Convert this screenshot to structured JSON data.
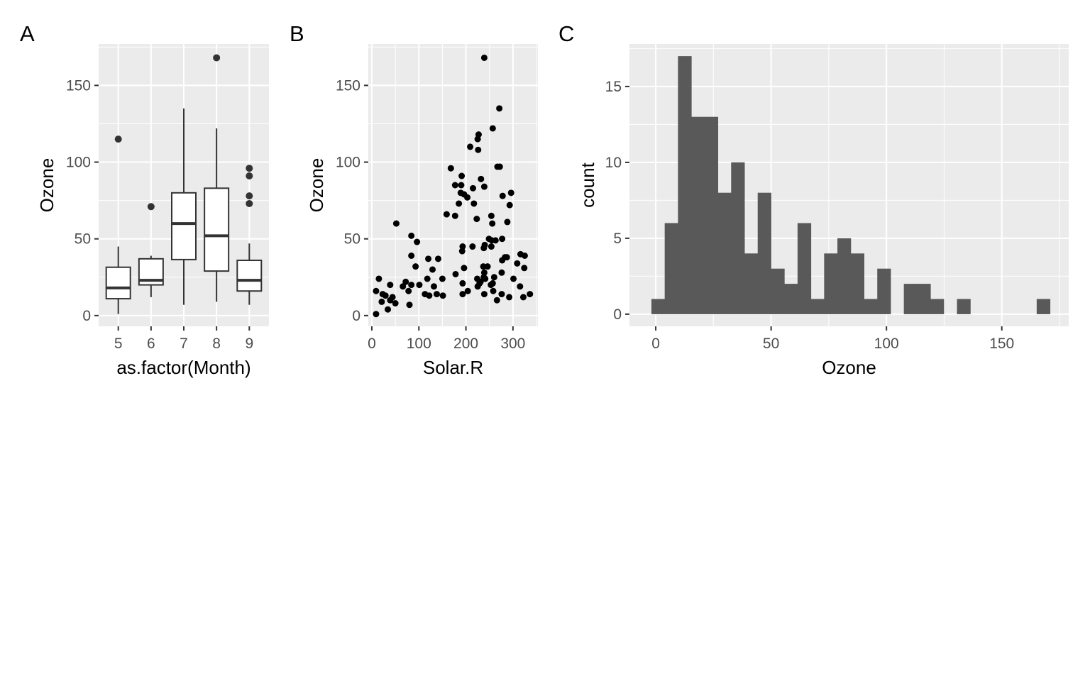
{
  "chart_data": [
    {
      "tag": "A",
      "type": "box",
      "xlabel": "as.factor(Month)",
      "ylabel": "Ozone",
      "ylim": [
        -7,
        177
      ],
      "yticks": [
        0,
        50,
        100,
        150
      ],
      "categories": [
        "5",
        "6",
        "7",
        "8",
        "9"
      ],
      "boxes": [
        {
          "category": "5",
          "lower": 1,
          "q1": 11,
          "median": 18,
          "q3": 31.5,
          "upper": 45,
          "outliers": [
            115
          ]
        },
        {
          "category": "6",
          "lower": 12,
          "q1": 20,
          "median": 23,
          "q3": 37,
          "upper": 39,
          "outliers": [
            71
          ]
        },
        {
          "category": "7",
          "lower": 7,
          "q1": 36.5,
          "median": 60,
          "q3": 80,
          "upper": 135,
          "outliers": []
        },
        {
          "category": "8",
          "lower": 9,
          "q1": 29,
          "median": 52,
          "q3": 83,
          "upper": 122,
          "outliers": [
            168
          ]
        },
        {
          "category": "9",
          "lower": 7,
          "q1": 16,
          "median": 23,
          "q3": 36,
          "upper": 47,
          "outliers": [
            96,
            91,
            78,
            73
          ]
        }
      ]
    },
    {
      "tag": "B",
      "type": "scatter",
      "xlabel": "Solar.R",
      "ylabel": "Ozone",
      "xlim": [
        -7.5,
        353
      ],
      "ylim": [
        -7,
        177
      ],
      "xticks": [
        0,
        100,
        200,
        300
      ],
      "yticks": [
        0,
        50,
        100,
        150
      ],
      "points": [
        [
          239,
          168
        ],
        [
          271,
          135
        ],
        [
          257,
          122
        ],
        [
          227,
          118
        ],
        [
          225,
          115
        ],
        [
          209,
          110
        ],
        [
          226,
          108
        ],
        [
          267,
          97
        ],
        [
          272,
          97
        ],
        [
          168,
          96
        ],
        [
          191,
          91
        ],
        [
          232,
          89
        ],
        [
          177,
          85
        ],
        [
          190,
          85
        ],
        [
          215,
          83
        ],
        [
          239,
          84
        ],
        [
          189,
          80
        ],
        [
          196,
          79
        ],
        [
          203,
          77
        ],
        [
          185,
          73
        ],
        [
          217,
          73
        ],
        [
          278,
          78
        ],
        [
          296,
          80
        ],
        [
          293,
          72
        ],
        [
          159,
          66
        ],
        [
          177,
          65
        ],
        [
          223,
          63
        ],
        [
          254,
          65
        ],
        [
          256,
          60
        ],
        [
          288,
          61
        ],
        [
          52,
          60
        ],
        [
          84,
          52
        ],
        [
          96,
          48
        ],
        [
          277,
          50
        ],
        [
          249,
          50
        ],
        [
          255,
          49
        ],
        [
          263,
          49
        ],
        [
          254,
          45
        ],
        [
          240,
          46
        ],
        [
          238,
          44
        ],
        [
          214,
          45
        ],
        [
          193,
          45
        ],
        [
          192,
          42
        ],
        [
          84,
          39
        ],
        [
          93,
          32
        ],
        [
          120,
          37
        ],
        [
          141,
          37
        ],
        [
          129,
          30
        ],
        [
          150,
          24
        ],
        [
          118,
          24
        ],
        [
          132,
          19
        ],
        [
          101,
          20
        ],
        [
          72,
          22
        ],
        [
          84,
          20
        ],
        [
          66,
          19
        ],
        [
          78,
          16
        ],
        [
          80,
          7
        ],
        [
          39,
          20
        ],
        [
          15,
          24
        ],
        [
          9,
          16
        ],
        [
          23,
          14
        ],
        [
          29,
          13
        ],
        [
          44,
          12
        ],
        [
          21,
          9
        ],
        [
          39,
          10
        ],
        [
          50,
          8
        ],
        [
          34,
          4
        ],
        [
          9,
          1
        ],
        [
          113,
          14
        ],
        [
          122,
          13
        ],
        [
          138,
          14
        ],
        [
          151,
          13
        ],
        [
          178,
          27
        ],
        [
          196,
          31
        ],
        [
          193,
          21
        ],
        [
          193,
          14
        ],
        [
          204,
          16
        ],
        [
          239,
          14
        ],
        [
          237,
          32
        ],
        [
          246,
          32
        ],
        [
          239,
          28
        ],
        [
          238,
          25
        ],
        [
          224,
          24
        ],
        [
          231,
          22
        ],
        [
          241,
          24
        ],
        [
          225,
          19
        ],
        [
          229,
          21
        ],
        [
          260,
          25
        ],
        [
          257,
          21
        ],
        [
          253,
          20
        ],
        [
          258,
          16
        ],
        [
          276,
          28
        ],
        [
          276,
          14
        ],
        [
          266,
          10
        ],
        [
          292,
          12
        ],
        [
          301,
          24
        ],
        [
          315,
          19
        ],
        [
          322,
          12
        ],
        [
          336,
          14
        ],
        [
          309,
          34
        ],
        [
          324,
          31
        ],
        [
          316,
          40
        ],
        [
          325,
          39
        ],
        [
          277,
          36
        ],
        [
          283,
          38
        ],
        [
          287,
          38
        ]
      ]
    },
    {
      "tag": "C",
      "type": "bar",
      "subtype": "histogram",
      "xlabel": "Ozone",
      "ylabel": "count",
      "xlim": [
        -11.4,
        179
      ],
      "ylim": [
        -0.8,
        17.8
      ],
      "xticks": [
        0,
        50,
        100,
        150
      ],
      "yticks": [
        0,
        5,
        10,
        15
      ],
      "bin_start": -1.88,
      "bin_width": 5.7586,
      "counts": [
        1,
        6,
        17,
        13,
        13,
        8,
        10,
        4,
        8,
        3,
        2,
        6,
        1,
        4,
        5,
        4,
        1,
        3,
        0,
        2,
        2,
        1,
        0,
        1,
        0,
        0,
        0,
        0,
        0,
        1
      ]
    }
  ]
}
